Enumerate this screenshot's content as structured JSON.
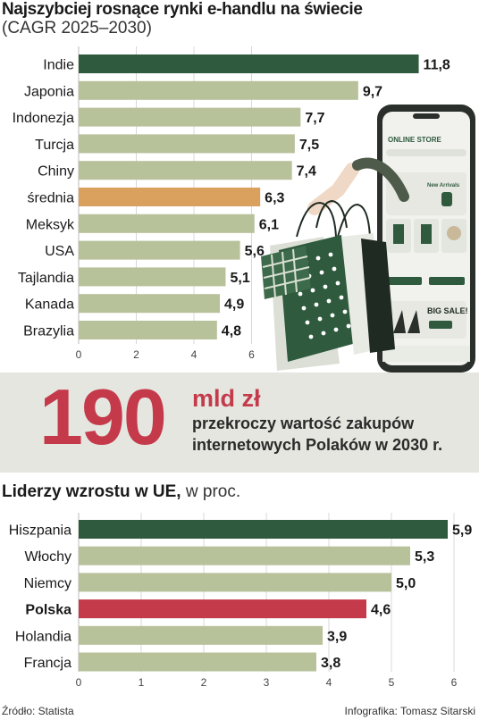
{
  "colors": {
    "dark_green": "#2f5a3d",
    "light_green": "#b7c19a",
    "orange": "#d9a05e",
    "red": "#c43a4b",
    "band": "#e4e6df"
  },
  "header": {
    "title": "Najszybciej rosnące rynki e-handlu na świecie",
    "subtitle": "(CAGR 2025–2030)"
  },
  "stat": {
    "number": "190",
    "unit": "mld zł",
    "text": "przekroczy wartość zakupów internetowych Polaków w 2030 r."
  },
  "section2": {
    "title_bold": "Liderzy wzrostu w UE,",
    "title_rest": " w proc."
  },
  "footer": {
    "source": "Źródło: Statista",
    "credit": "Infografika: Tomasz Sitarski"
  },
  "illustration": {
    "phone_header": "ONLINE STORE",
    "banner1": "New Arrivals",
    "banner2": "BIG SALE!"
  },
  "chart_data": [
    {
      "type": "bar",
      "orientation": "horizontal",
      "title": "Najszybciej rosnące rynki e-handlu na świecie",
      "subtitle": "(CAGR 2025–2030)",
      "categories": [
        "Indie",
        "Japonia",
        "Indonezja",
        "Turcja",
        "Chiny",
        "średnia",
        "Meksyk",
        "USA",
        "Tajlandia",
        "Kanada",
        "Brazylia"
      ],
      "values": [
        11.8,
        9.7,
        7.7,
        7.5,
        7.4,
        6.3,
        6.1,
        5.6,
        5.1,
        4.9,
        4.8
      ],
      "value_labels": [
        "11,8",
        "9,7",
        "7,7",
        "7,5",
        "7,4",
        "6,3",
        "6,1",
        "5,6",
        "5,1",
        "4,9",
        "4,8"
      ],
      "bar_colors": [
        "#2f5a3d",
        "#b7c19a",
        "#b7c19a",
        "#b7c19a",
        "#b7c19a",
        "#d9a05e",
        "#b7c19a",
        "#b7c19a",
        "#b7c19a",
        "#b7c19a",
        "#b7c19a"
      ],
      "xticks": [
        "0",
        "2",
        "4",
        "6"
      ],
      "xlim": [
        0,
        12
      ],
      "grid": true
    },
    {
      "type": "bar",
      "orientation": "horizontal",
      "title": "Liderzy wzrostu w UE, w proc.",
      "categories": [
        "Hiszpania",
        "Włochy",
        "Niemcy",
        "Polska",
        "Holandia",
        "Francja"
      ],
      "values": [
        5.9,
        5.3,
        5.0,
        4.6,
        3.9,
        3.8
      ],
      "value_labels": [
        "5,9",
        "5,3",
        "5,0",
        "4,6",
        "3,9",
        "3,8"
      ],
      "bar_colors": [
        "#2f5a3d",
        "#b7c19a",
        "#b7c19a",
        "#c43a4b",
        "#b7c19a",
        "#b7c19a"
      ],
      "bold_categories": [
        "Polska"
      ],
      "xticks": [
        "0",
        "1",
        "2",
        "3",
        "4",
        "5",
        "6"
      ],
      "xlim": [
        0,
        6
      ],
      "grid": true
    }
  ]
}
